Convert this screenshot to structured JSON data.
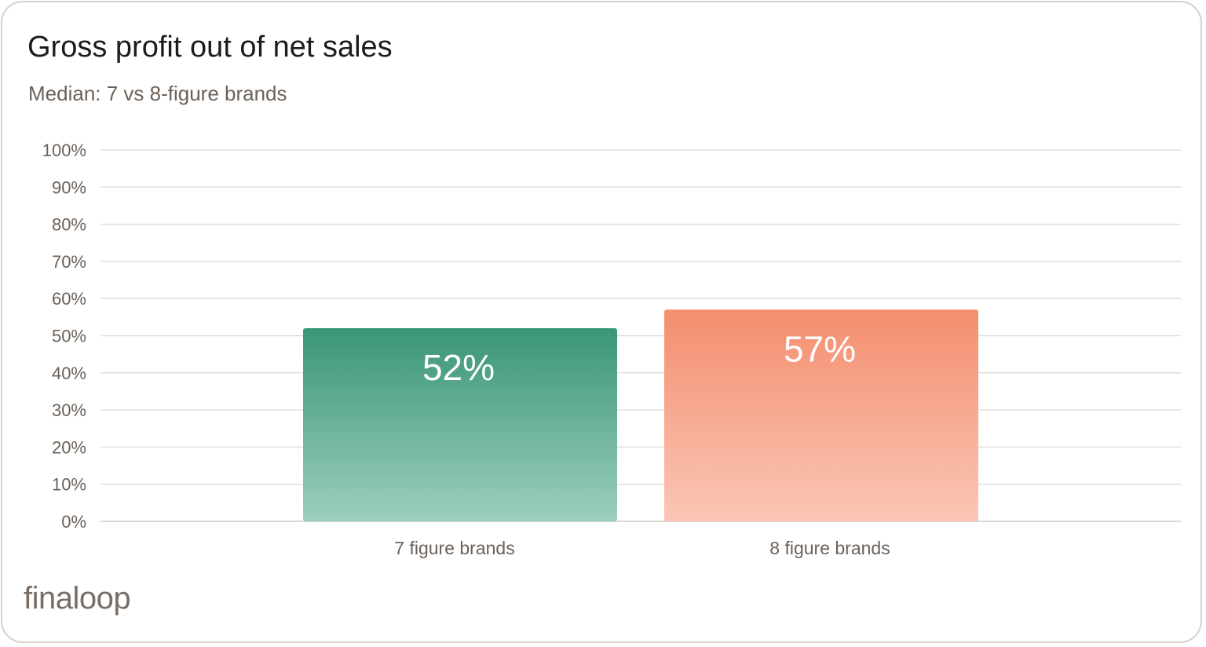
{
  "brand": {
    "logo_text": "finaloop"
  },
  "chart_data": {
    "type": "bar",
    "title": "Gross profit out of net sales",
    "subtitle": "Median: 7 vs 8-figure brands",
    "categories": [
      "7 figure brands",
      "8 figure brands"
    ],
    "values": [
      52,
      57
    ],
    "data_labels": [
      "52%",
      "57%"
    ],
    "ylim": [
      0,
      100
    ],
    "yticks": [
      0,
      10,
      20,
      30,
      40,
      50,
      60,
      70,
      80,
      90,
      100
    ],
    "ytick_labels": [
      "0%",
      "10%",
      "20%",
      "30%",
      "40%",
      "50%",
      "60%",
      "70%",
      "80%",
      "90%",
      "100%"
    ],
    "grid": true,
    "xlabel": "",
    "ylabel": "",
    "colors": [
      {
        "top": "#3a9576",
        "bottom": "#9ccfbd"
      },
      {
        "top": "#f48e6e",
        "bottom": "#fac6b6"
      }
    ]
  }
}
